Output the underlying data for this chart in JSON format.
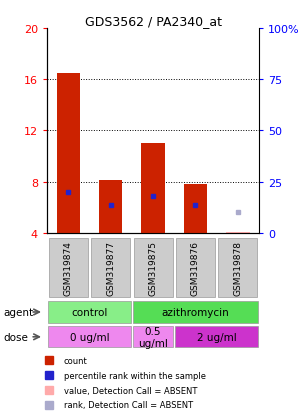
{
  "title": "GDS3562 / PA2340_at",
  "samples": [
    "GSM319874",
    "GSM319877",
    "GSM319875",
    "GSM319876",
    "GSM319878"
  ],
  "count_values": [
    16.5,
    8.1,
    11.0,
    7.8,
    null
  ],
  "rank_values": [
    7.2,
    6.2,
    6.9,
    6.2,
    null
  ],
  "count_absent": [
    null,
    null,
    null,
    null,
    4.1
  ],
  "rank_absent": [
    null,
    null,
    null,
    null,
    5.6
  ],
  "ylim": [
    4,
    20
  ],
  "yticks": [
    4,
    8,
    12,
    16,
    20
  ],
  "yticklabels": [
    "4",
    "8",
    "12",
    "16",
    "20"
  ],
  "y2lim": [
    0,
    100
  ],
  "y2ticks": [
    0,
    25,
    50,
    75,
    100
  ],
  "y2ticklabels": [
    "0",
    "25",
    "50",
    "75",
    "100%"
  ],
  "bar_color": "#cc2200",
  "rank_color": "#2222cc",
  "absent_count_color": "#ffaaaa",
  "absent_rank_color": "#aaaacc",
  "sample_box_color": "#cccccc",
  "agent_control_color": "#88ee88",
  "agent_azithro_color": "#55dd55",
  "dose_light_color": "#ee88ee",
  "dose_dark_color": "#cc33cc"
}
